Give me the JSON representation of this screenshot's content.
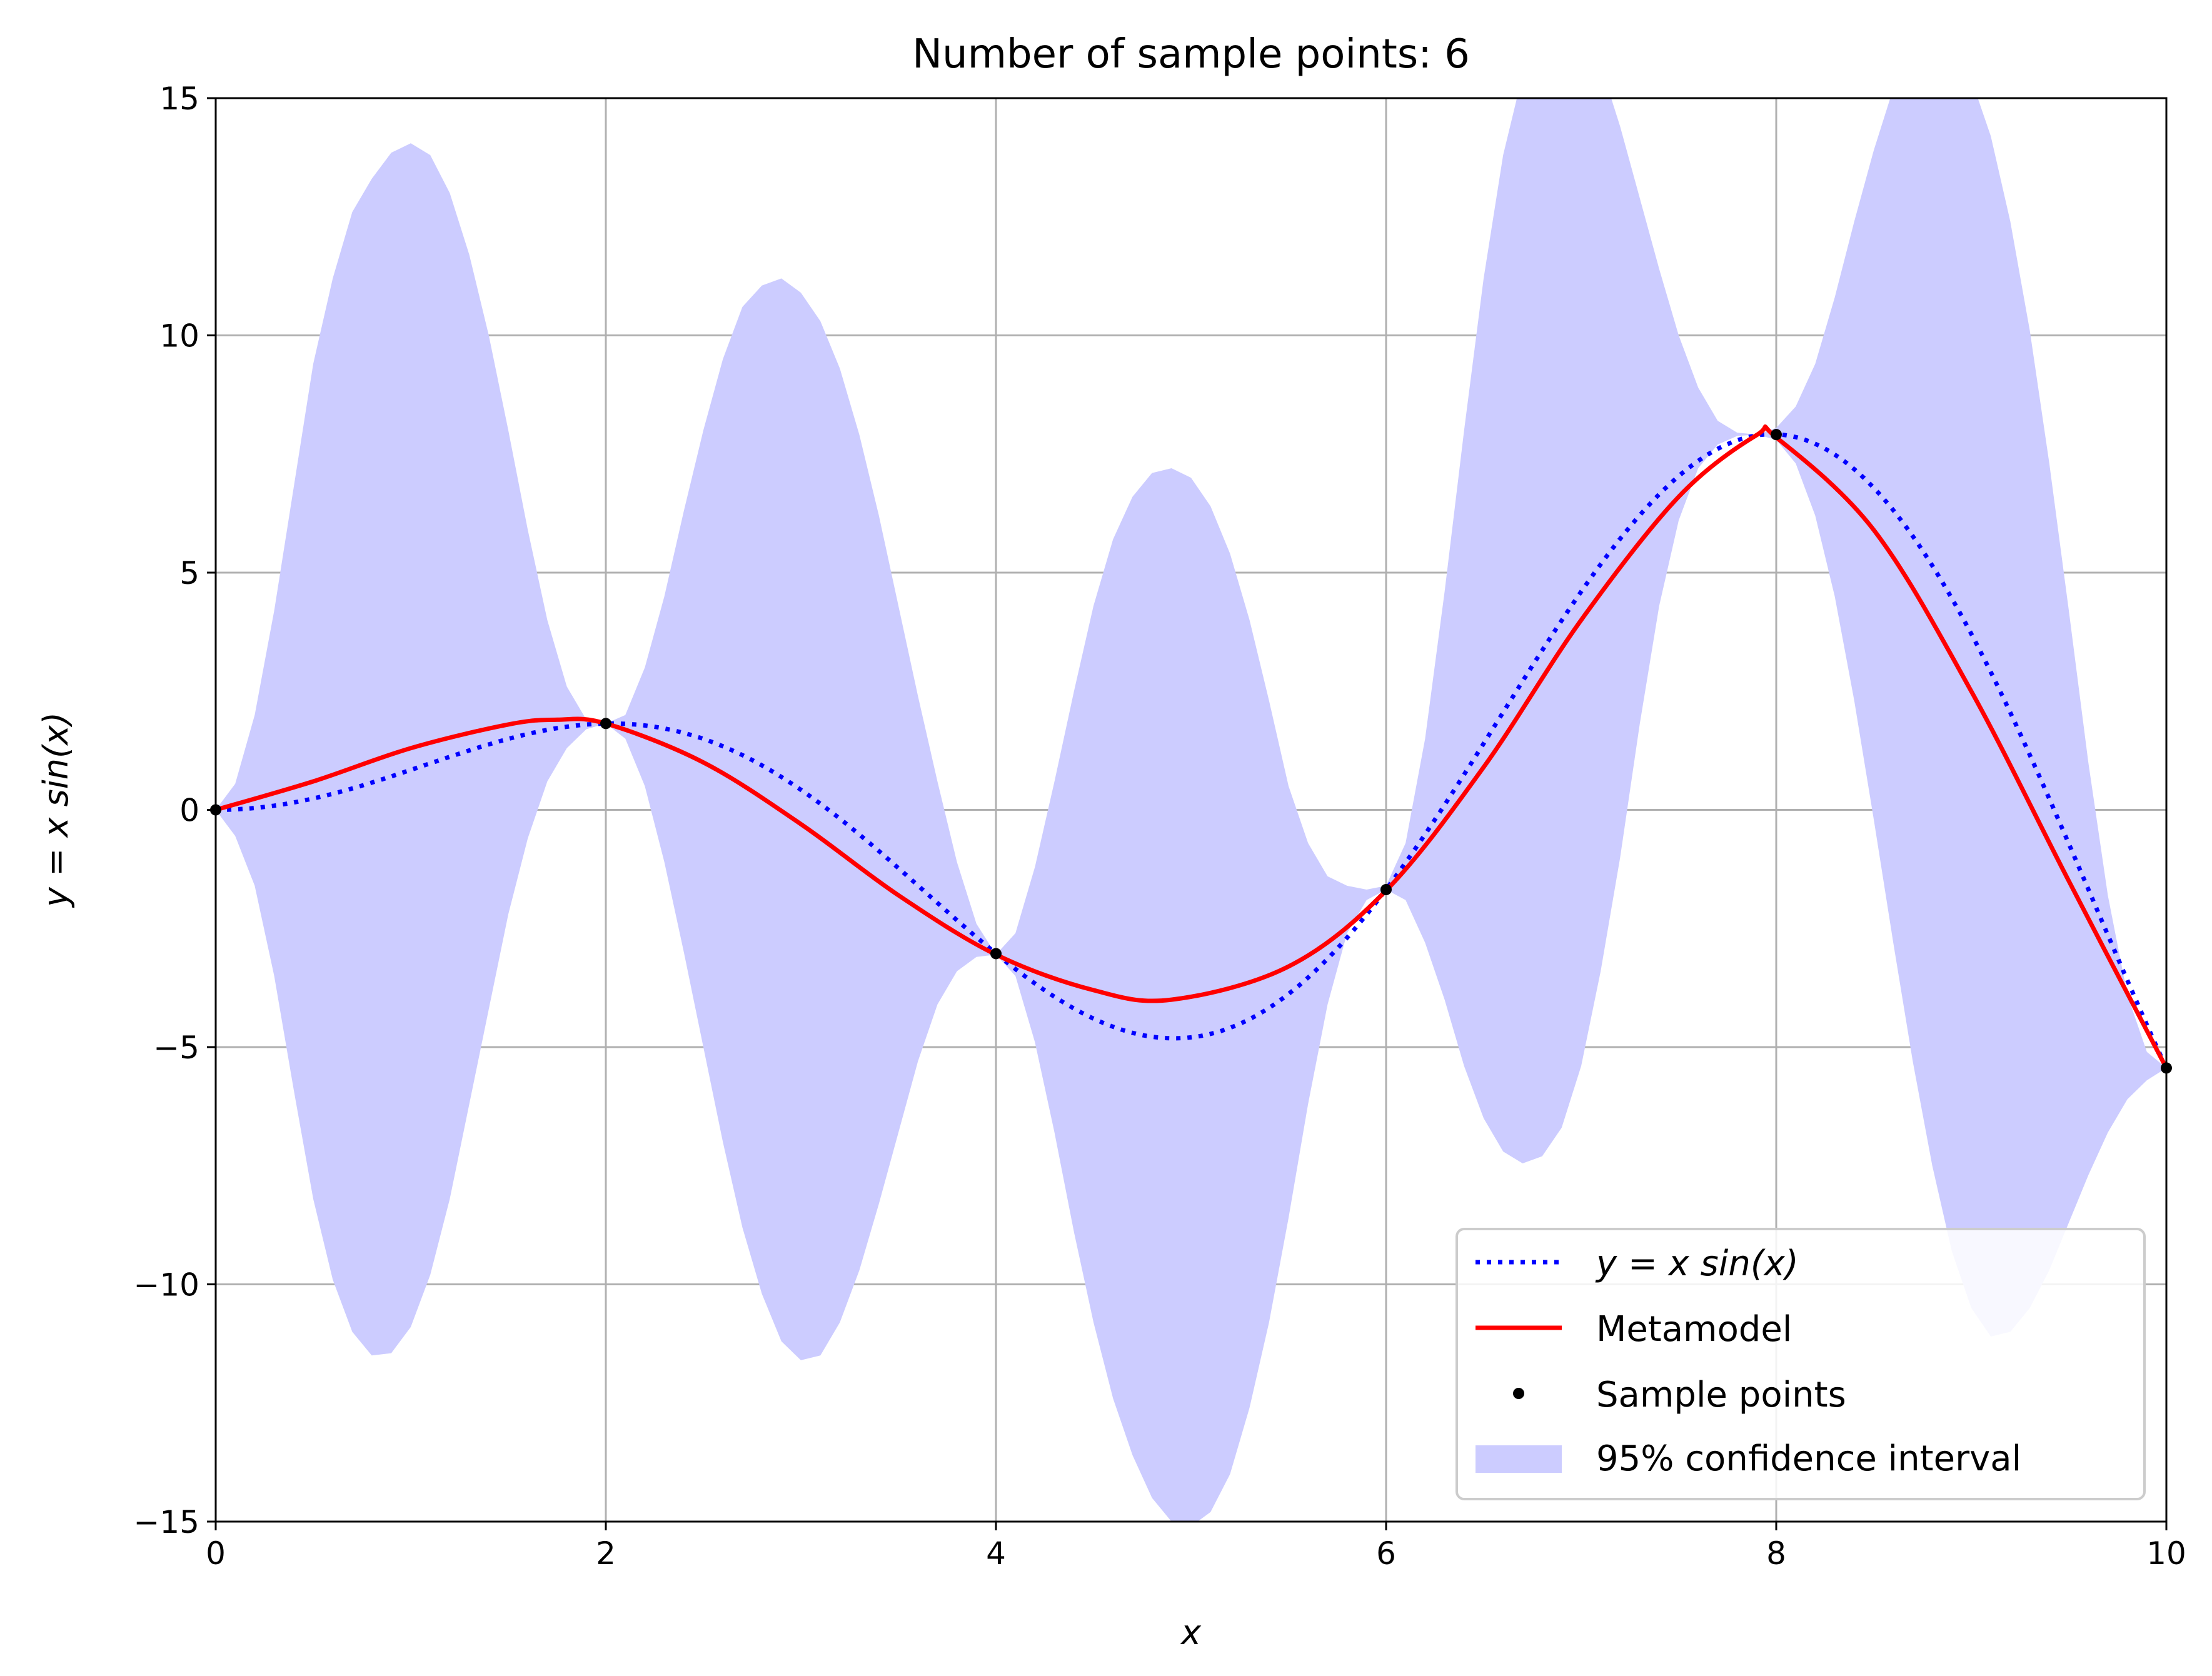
{
  "chart_data": {
    "type": "line",
    "title": "Number of sample points: 6",
    "xlabel": "x",
    "ylabel": "y = x sin(x)",
    "xlim": [
      0,
      10
    ],
    "ylim": [
      -15,
      15
    ],
    "xticks": [
      0,
      2,
      4,
      6,
      8,
      10
    ],
    "xtick_labels": [
      "0",
      "2",
      "4",
      "6",
      "8",
      "10"
    ],
    "yticks": [
      -15,
      -10,
      -5,
      0,
      5,
      10,
      15
    ],
    "ytick_labels": [
      "−15",
      "−10",
      "−5",
      "0",
      "5",
      "10",
      "15"
    ],
    "grid": true,
    "legend_position": "lower-right",
    "series": [
      {
        "name": "y = x sin(x)",
        "style": "dotted",
        "color": "#0000ff",
        "function": "x*sin(x)"
      },
      {
        "name": "Metamodel",
        "style": "solid",
        "color": "#ff0000",
        "x": [
          0,
          0.5,
          1.0,
          1.5,
          1.75,
          2.0,
          2.5,
          3.0,
          3.5,
          4.0,
          4.5,
          4.9,
          5.5,
          6.0,
          6.5,
          7.0,
          7.5,
          7.9,
          8.0,
          8.5,
          9.0,
          9.5,
          10.0
        ],
        "y": [
          0,
          0.6,
          1.3,
          1.8,
          1.9,
          1.82,
          1.0,
          -0.3,
          -1.8,
          -3.05,
          -3.8,
          -4.0,
          -3.3,
          -1.7,
          0.9,
          4.0,
          6.6,
          7.9,
          7.85,
          5.9,
          2.5,
          -1.5,
          -5.44
        ]
      },
      {
        "name": "Sample points",
        "type": "scatter",
        "color": "#000000",
        "x": [
          0,
          2,
          4,
          6,
          8,
          10
        ],
        "y": [
          0,
          1.82,
          -3.03,
          -1.68,
          7.91,
          -5.44
        ]
      },
      {
        "name": "95% confidence interval",
        "type": "area",
        "color": "#ccccff",
        "x": [
          0,
          0.1,
          0.2,
          0.3,
          0.4,
          0.5,
          0.6,
          0.7,
          0.8,
          0.9,
          1.0,
          1.1,
          1.2,
          1.3,
          1.4,
          1.5,
          1.6,
          1.7,
          1.8,
          1.9,
          2.0,
          2.1,
          2.2,
          2.3,
          2.4,
          2.5,
          2.6,
          2.7,
          2.8,
          2.9,
          3.0,
          3.1,
          3.2,
          3.3,
          3.4,
          3.5,
          3.6,
          3.7,
          3.8,
          3.9,
          4.0,
          4.1,
          4.2,
          4.3,
          4.4,
          4.5,
          4.6,
          4.7,
          4.8,
          4.9,
          5.0,
          5.1,
          5.2,
          5.3,
          5.4,
          5.5,
          5.6,
          5.7,
          5.8,
          5.9,
          6.0,
          6.1,
          6.2,
          6.3,
          6.4,
          6.5,
          6.6,
          6.7,
          6.8,
          6.9,
          7.0,
          7.1,
          7.2,
          7.3,
          7.4,
          7.5,
          7.6,
          7.7,
          7.8,
          7.9,
          8.0,
          8.1,
          8.2,
          8.3,
          8.4,
          8.5,
          8.6,
          8.7,
          8.8,
          8.9,
          9.0,
          9.1,
          9.2,
          9.3,
          9.4,
          9.5,
          9.6,
          9.7,
          9.8,
          9.9,
          10.0
        ],
        "upper": [
          0.0,
          0.55,
          2.0,
          4.2,
          6.8,
          9.4,
          11.2,
          12.6,
          13.3,
          13.85,
          14.05,
          13.8,
          13.0,
          11.7,
          10.0,
          8.0,
          5.9,
          4.0,
          2.6,
          1.9,
          1.82,
          2.0,
          3.0,
          4.5,
          6.3,
          8.0,
          9.5,
          10.6,
          11.05,
          11.2,
          10.9,
          10.3,
          9.3,
          7.9,
          6.2,
          4.3,
          2.4,
          0.6,
          -1.1,
          -2.4,
          -3.05,
          -2.6,
          -1.2,
          0.6,
          2.5,
          4.3,
          5.7,
          6.6,
          7.1,
          7.2,
          7.0,
          6.4,
          5.4,
          4.0,
          2.3,
          0.5,
          -0.7,
          -1.4,
          -1.6,
          -1.68,
          -1.6,
          -0.7,
          1.5,
          4.6,
          8.0,
          11.2,
          13.8,
          15.5,
          16.5,
          16.9,
          16.6,
          15.7,
          14.4,
          12.9,
          11.4,
          10.0,
          8.9,
          8.2,
          7.95,
          7.91,
          8.05,
          8.5,
          9.4,
          10.8,
          12.4,
          13.9,
          15.2,
          16.0,
          16.3,
          16.1,
          15.4,
          14.2,
          12.4,
          10.1,
          7.3,
          4.2,
          1.0,
          -1.8,
          -3.9,
          -5.1,
          -5.44
        ],
        "lower": [
          0.0,
          -0.55,
          -1.6,
          -3.5,
          -5.9,
          -8.2,
          -9.9,
          -11.0,
          -11.5,
          -11.45,
          -10.9,
          -9.8,
          -8.2,
          -6.2,
          -4.2,
          -2.2,
          -0.6,
          0.6,
          1.3,
          1.7,
          1.82,
          1.5,
          0.5,
          -1.1,
          -3.0,
          -5.0,
          -7.0,
          -8.8,
          -10.2,
          -11.2,
          -11.6,
          -11.5,
          -10.8,
          -9.7,
          -8.3,
          -6.8,
          -5.3,
          -4.1,
          -3.4,
          -3.1,
          -3.05,
          -3.5,
          -4.9,
          -6.8,
          -8.9,
          -10.8,
          -12.4,
          -13.6,
          -14.5,
          -15.0,
          -15.1,
          -14.8,
          -14.0,
          -12.6,
          -10.8,
          -8.6,
          -6.2,
          -4.1,
          -2.6,
          -1.9,
          -1.68,
          -1.9,
          -2.8,
          -4.0,
          -5.4,
          -6.5,
          -7.2,
          -7.45,
          -7.3,
          -6.7,
          -5.4,
          -3.4,
          -1.0,
          1.8,
          4.3,
          6.1,
          7.2,
          7.7,
          7.88,
          7.91,
          7.8,
          7.3,
          6.2,
          4.5,
          2.3,
          -0.2,
          -2.8,
          -5.3,
          -7.5,
          -9.3,
          -10.5,
          -11.1,
          -11.0,
          -10.5,
          -9.7,
          -8.7,
          -7.7,
          -6.8,
          -6.1,
          -5.7,
          -5.44
        ]
      }
    ]
  },
  "legend": {
    "items": [
      {
        "key": "function",
        "label": "y = x sin(x)"
      },
      {
        "key": "metamodel",
        "label": "Metamodel"
      },
      {
        "key": "samples",
        "label": "Sample points"
      },
      {
        "key": "ci",
        "label": "95% confidence interval"
      }
    ]
  }
}
